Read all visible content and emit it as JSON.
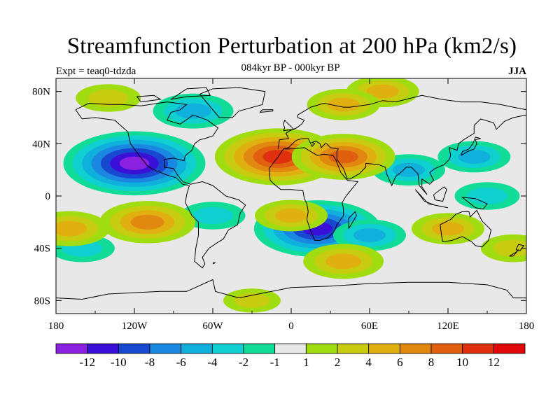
{
  "chart_data": {
    "type": "heatmap",
    "title": "Streamfunction Perturbation at 200 hPa (km2/s)",
    "subtitle": "084kyr BP - 000kyr BP",
    "left_label": "Expt = teaq0-tdzda",
    "right_label": "JJA",
    "x_axis": {
      "range": [
        -180,
        180
      ],
      "ticks": [
        {
          "value": -180,
          "label": "180"
        },
        {
          "value": -120,
          "label": "120W"
        },
        {
          "value": -60,
          "label": "60W"
        },
        {
          "value": 0,
          "label": "0"
        },
        {
          "value": 60,
          "label": "60E"
        },
        {
          "value": 120,
          "label": "120E"
        },
        {
          "value": 180,
          "label": "180"
        }
      ]
    },
    "y_axis": {
      "range": [
        -90,
        90
      ],
      "ticks": [
        {
          "value": 80,
          "label": "80N"
        },
        {
          "value": 40,
          "label": "40N"
        },
        {
          "value": 0,
          "label": "0"
        },
        {
          "value": -40,
          "label": "40S"
        },
        {
          "value": -80,
          "label": "80S"
        }
      ]
    },
    "colorbar": {
      "labels": [
        "-12",
        "-10",
        "-8",
        "-6",
        "-4",
        "-2",
        "-1",
        "1",
        "2",
        "4",
        "6",
        "8",
        "10",
        "12"
      ],
      "colors": [
        "#8a20e0",
        "#3a10d8",
        "#1848d0",
        "#1a88e0",
        "#10b0dc",
        "#10cfd0",
        "#10dc98",
        "#e8e8e8",
        "#a0dc10",
        "#c8cc10",
        "#e0b010",
        "#e08810",
        "#e06010",
        "#e03010",
        "#e00808"
      ]
    },
    "anomalies": [
      {
        "lon": -120,
        "lat": 25,
        "value": -13
      },
      {
        "lon": -75,
        "lat": 65,
        "value": -5
      },
      {
        "lon": -60,
        "lat": -15,
        "value": -3
      },
      {
        "lon": 20,
        "lat": -25,
        "value": -11
      },
      {
        "lon": 60,
        "lat": -30,
        "value": -4
      },
      {
        "lon": 90,
        "lat": 20,
        "value": -4
      },
      {
        "lon": 140,
        "lat": 30,
        "value": -4
      },
      {
        "lon": 150,
        "lat": 0,
        "value": -3
      },
      {
        "lon": -160,
        "lat": -40,
        "value": -3
      },
      {
        "lon": -10,
        "lat": 30,
        "value": 11
      },
      {
        "lon": 40,
        "lat": 30,
        "value": 8
      },
      {
        "lon": -110,
        "lat": -20,
        "value": 7
      },
      {
        "lon": -170,
        "lat": -25,
        "value": 5
      },
      {
        "lon": 0,
        "lat": -15,
        "value": 4
      },
      {
        "lon": 40,
        "lat": -50,
        "value": 5
      },
      {
        "lon": 120,
        "lat": -25,
        "value": 4
      },
      {
        "lon": 170,
        "lat": -40,
        "value": 3
      },
      {
        "lon": 70,
        "lat": 80,
        "value": 4
      },
      {
        "lon": -140,
        "lat": 75,
        "value": 3
      },
      {
        "lon": 40,
        "lat": 70,
        "value": 4
      },
      {
        "lon": -30,
        "lat": -80,
        "value": 2
      }
    ]
  }
}
